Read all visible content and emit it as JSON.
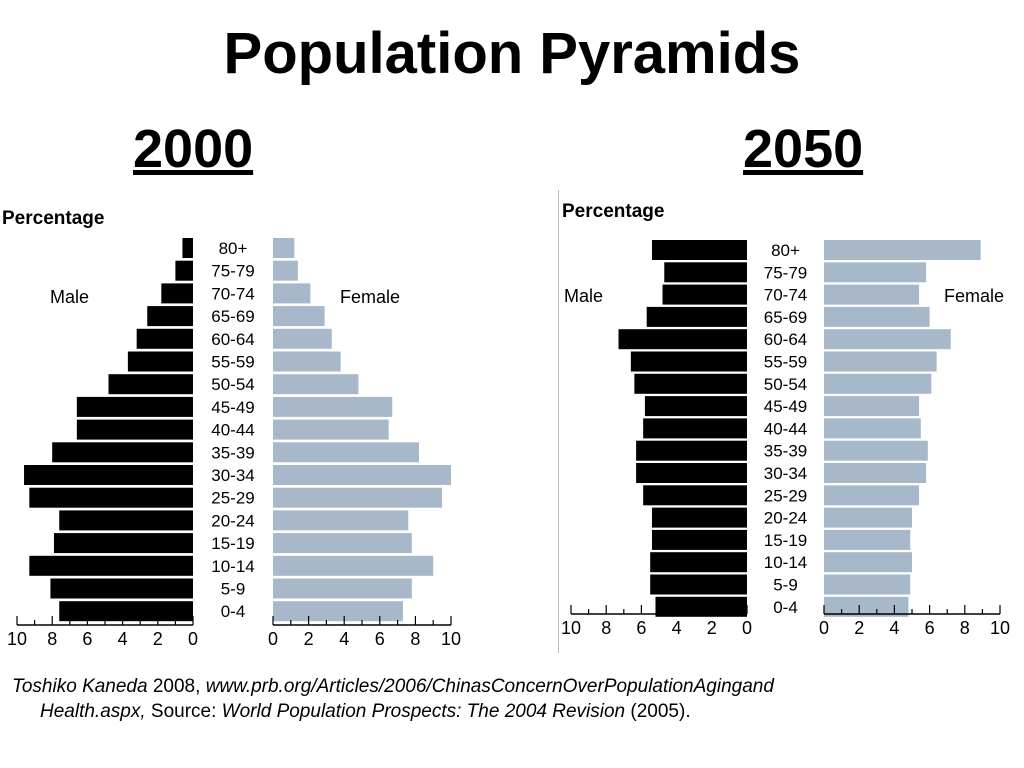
{
  "title": "Population Pyramids",
  "colors": {
    "male": "#000000",
    "female": "#a7b8cb"
  },
  "chart_data": [
    {
      "type": "bar",
      "year_label": "2000",
      "ylabel": "Percentage",
      "male_label": "Male",
      "female_label": "Female",
      "categories": [
        "80+",
        "75-79",
        "70-74",
        "65-69",
        "60-64",
        "55-59",
        "50-54",
        "45-49",
        "40-44",
        "35-39",
        "30-34",
        "25-29",
        "20-24",
        "15-19",
        "10-14",
        "5-9",
        "0-4"
      ],
      "series": [
        {
          "name": "Male",
          "values": [
            0.6,
            1.0,
            1.8,
            2.6,
            3.2,
            3.7,
            4.8,
            6.6,
            6.6,
            8.0,
            9.6,
            9.3,
            7.6,
            7.9,
            9.3,
            8.1,
            7.6
          ]
        },
        {
          "name": "Female",
          "values": [
            1.2,
            1.4,
            2.1,
            2.9,
            3.3,
            3.8,
            4.8,
            6.7,
            6.5,
            8.2,
            10.0,
            9.5,
            7.6,
            7.8,
            9.0,
            7.8,
            7.3
          ]
        }
      ],
      "xlim": [
        0,
        10
      ],
      "ticks": [
        "10",
        "8",
        "6",
        "4",
        "2",
        "0"
      ],
      "ticks_right": [
        "0",
        "2",
        "4",
        "6",
        "8",
        "10"
      ]
    },
    {
      "type": "bar",
      "year_label": "2050",
      "ylabel": "Percentage",
      "male_label": "Male",
      "female_label": "Female",
      "categories": [
        "80+",
        "75-79",
        "70-74",
        "65-69",
        "60-64",
        "55-59",
        "50-54",
        "45-49",
        "40-44",
        "35-39",
        "30-34",
        "25-29",
        "20-24",
        "15-19",
        "10-14",
        "5-9",
        "0-4"
      ],
      "series": [
        {
          "name": "Male",
          "values": [
            5.4,
            4.7,
            4.8,
            5.7,
            7.3,
            6.6,
            6.4,
            5.8,
            5.9,
            6.3,
            6.3,
            5.9,
            5.4,
            5.4,
            5.5,
            5.5,
            5.2
          ]
        },
        {
          "name": "Female",
          "values": [
            8.9,
            5.8,
            5.4,
            6.0,
            7.2,
            6.4,
            6.1,
            5.4,
            5.5,
            5.9,
            5.8,
            5.4,
            5.0,
            4.9,
            5.0,
            4.9,
            4.8
          ]
        }
      ],
      "xlim": [
        0,
        10
      ],
      "ticks": [
        "10",
        "8",
        "6",
        "4",
        "2",
        "0"
      ],
      "ticks_right": [
        "0",
        "2",
        "4",
        "6",
        "8",
        "10"
      ]
    }
  ],
  "citation": {
    "author": "Toshiko Kaneda",
    "year": "2008",
    "comma": ",",
    "url_part1": "www.prb.org/Articles/2006/ChinasConcernOverPopulationAgingand",
    "url_part2": "Health.aspx,",
    "source_label": "Source:",
    "source_title": "World Population Prospects: The 2004 Revision",
    "source_year": "(2005)."
  }
}
